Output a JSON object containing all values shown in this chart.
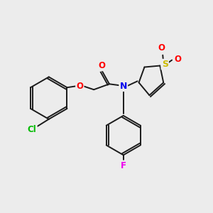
{
  "bg_color": "#ececec",
  "bond_color": "#1a1a1a",
  "atom_colors": {
    "O": "#ff0000",
    "N": "#0000ee",
    "S": "#ccbb00",
    "Cl": "#00bb00",
    "F": "#ee00ee",
    "C": "#1a1a1a"
  },
  "figsize": [
    3.0,
    3.0
  ],
  "dpi": 100
}
